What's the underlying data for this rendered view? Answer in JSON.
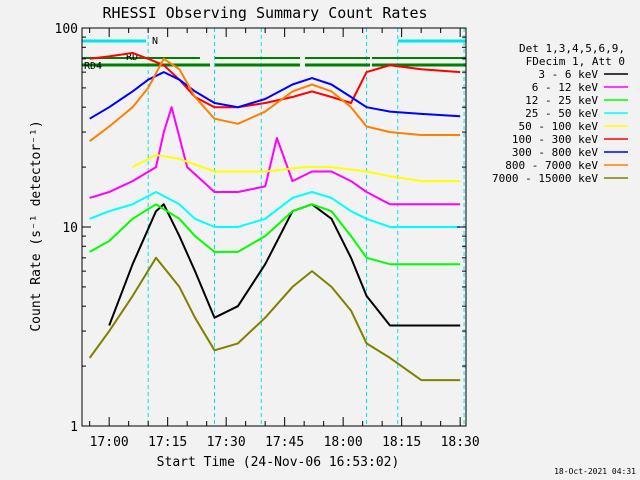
{
  "chart_data": {
    "type": "line",
    "title": "RHESSI Observing Summary Count Rates",
    "xlabel": "Start Time (24-Nov-06 16:53:02)",
    "ylabel": "Count Rate (s⁻¹ detector⁻¹)",
    "y_scale": "log",
    "ylim": [
      1,
      100
    ],
    "xlim": [
      "16:53:02",
      "18:31:30"
    ],
    "x_ticks": [
      "17:00",
      "17:15",
      "17:30",
      "17:45",
      "18:00",
      "18:15",
      "18:30"
    ],
    "y_ticks": [
      "1",
      "10",
      "100"
    ],
    "footer_date": "18-Oct-2021 04:31",
    "legend": {
      "placement": "right",
      "header": [
        "Det 1,3,4,5,6,9,",
        "FDecim 1, Att 0"
      ]
    },
    "flags": [
      {
        "label": "N",
        "color": "#00e5e5"
      },
      {
        "label": "RD",
        "color": "#008000"
      },
      {
        "label": "RD4",
        "color": "#008000"
      }
    ],
    "cyan_markers": [
      "16:53",
      "17:10",
      "17:27",
      "17:39",
      "18:06",
      "18:14",
      "18:31"
    ],
    "series": [
      {
        "name": "3 - 6 keV",
        "color": "#000000",
        "x": [
          "17:00",
          "17:06",
          "17:12",
          "17:14",
          "17:18",
          "17:22",
          "17:27",
          "17:33",
          "17:40",
          "17:47",
          "17:52",
          "17:57",
          "18:02",
          "18:06",
          "18:12",
          "18:20",
          "18:30"
        ],
        "values": [
          3.2,
          6.5,
          12,
          13,
          9,
          6,
          3.5,
          4,
          6.5,
          12,
          13,
          11,
          7,
          4.5,
          3.2,
          3.2,
          3.2
        ]
      },
      {
        "name": "6 - 12 keV",
        "color": "#ff00ff",
        "x": [
          "16:55",
          "17:00",
          "17:06",
          "17:12",
          "17:14",
          "17:16",
          "17:20",
          "17:27",
          "17:33",
          "17:40",
          "17:43",
          "17:47",
          "17:52",
          "17:57",
          "18:02",
          "18:06",
          "18:12",
          "18:20",
          "18:30"
        ],
        "values": [
          14,
          15,
          17,
          20,
          30,
          40,
          20,
          15,
          15,
          16,
          28,
          17,
          19,
          19,
          17,
          15,
          13,
          13,
          13
        ]
      },
      {
        "name": "12 - 25 keV",
        "color": "#00ff00",
        "x": [
          "16:55",
          "17:00",
          "17:06",
          "17:12",
          "17:18",
          "17:22",
          "17:27",
          "17:33",
          "17:40",
          "17:47",
          "17:52",
          "17:57",
          "18:02",
          "18:06",
          "18:12",
          "18:20",
          "18:30"
        ],
        "values": [
          7.5,
          8.5,
          11,
          13,
          11,
          9,
          7.5,
          7.5,
          9,
          12,
          13,
          12,
          9,
          7,
          6.5,
          6.5,
          6.5
        ]
      },
      {
        "name": "25 - 50 keV",
        "color": "#00ffff",
        "x": [
          "16:55",
          "17:00",
          "17:06",
          "17:12",
          "17:18",
          "17:22",
          "17:27",
          "17:33",
          "17:40",
          "17:47",
          "17:52",
          "17:57",
          "18:02",
          "18:06",
          "18:12",
          "18:20",
          "18:30"
        ],
        "values": [
          11,
          12,
          13,
          15,
          13,
          11,
          10,
          10,
          11,
          14,
          15,
          14,
          12,
          11,
          10,
          10,
          10
        ]
      },
      {
        "name": "50 - 100 keV",
        "color": "#ffff00",
        "x": [
          "17:06",
          "17:12",
          "17:18",
          "17:27",
          "17:40",
          "17:50",
          "17:57",
          "18:06",
          "18:12",
          "18:20",
          "18:30"
        ],
        "values": [
          20,
          23,
          22,
          19,
          19,
          20,
          20,
          19,
          18,
          17,
          17
        ]
      },
      {
        "name": "100 - 300 keV",
        "color": "#ff0000",
        "x": [
          "16:55",
          "17:00",
          "17:06",
          "17:10",
          "17:14",
          "17:18",
          "17:22",
          "17:27",
          "17:33",
          "17:40",
          "17:47",
          "17:52",
          "17:57",
          "18:02",
          "18:06",
          "18:12",
          "18:20",
          "18:30"
        ],
        "values": [
          70,
          72,
          75,
          70,
          65,
          55,
          45,
          40,
          40,
          42,
          45,
          48,
          45,
          42,
          60,
          65,
          62,
          60
        ]
      },
      {
        "name": "300 - 800 keV",
        "color": "#0000ff",
        "x": [
          "16:55",
          "17:00",
          "17:06",
          "17:10",
          "17:14",
          "17:18",
          "17:22",
          "17:27",
          "17:33",
          "17:40",
          "17:47",
          "17:52",
          "17:57",
          "18:02",
          "18:06",
          "18:12",
          "18:20",
          "18:30"
        ],
        "values": [
          35,
          40,
          48,
          55,
          60,
          55,
          48,
          42,
          40,
          44,
          52,
          56,
          52,
          45,
          40,
          38,
          37,
          36
        ]
      },
      {
        "name": "800 - 7000 keV",
        "color": "#ff8000",
        "x": [
          "16:55",
          "17:00",
          "17:06",
          "17:10",
          "17:14",
          "17:18",
          "17:22",
          "17:27",
          "17:33",
          "17:40",
          "17:47",
          "17:52",
          "17:57",
          "18:02",
          "18:06",
          "18:12",
          "18:20",
          "18:30"
        ],
        "values": [
          27,
          32,
          40,
          50,
          70,
          62,
          45,
          35,
          33,
          38,
          48,
          52,
          48,
          40,
          32,
          30,
          29,
          29
        ]
      },
      {
        "name": "7000 - 15000 keV",
        "color": "#808000",
        "x": [
          "16:55",
          "17:00",
          "17:06",
          "17:12",
          "17:18",
          "17:22",
          "17:27",
          "17:33",
          "17:40",
          "17:47",
          "17:52",
          "17:57",
          "18:02",
          "18:06",
          "18:12",
          "18:20",
          "18:30"
        ],
        "values": [
          2.2,
          3,
          4.5,
          7,
          5,
          3.5,
          2.4,
          2.6,
          3.5,
          5,
          6,
          5,
          3.8,
          2.6,
          2.2,
          1.7,
          1.7
        ]
      }
    ]
  }
}
